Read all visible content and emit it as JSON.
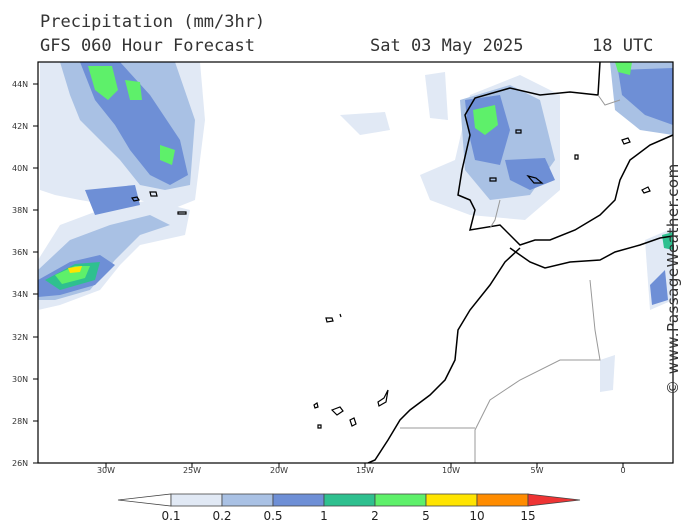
{
  "title": "Precipitation (mm/3hr)",
  "model_line": "GFS 060 Hour Forecast",
  "date": "Sat 03 May 2025",
  "time": "18 UTC",
  "credit": "© www.PassageWeather.com",
  "lat_labels": [
    "44N",
    "42N",
    "40N",
    "38N",
    "36N",
    "34N",
    "32N",
    "30N",
    "28N",
    "26N"
  ],
  "lon_labels": [
    "30W",
    "25W",
    "20W",
    "15W",
    "10W",
    "5W",
    "0"
  ],
  "legend": {
    "thresholds": [
      "0.1",
      "0.2",
      "0.5",
      "1",
      "2",
      "5",
      "10",
      "15"
    ],
    "colors": [
      "#ffffff",
      "#e1e9f5",
      "#a9c1e4",
      "#6e8fd6",
      "#2fc08f",
      "#5ef06a",
      "#ffe400",
      "#ff8c00",
      "#ee3434"
    ]
  }
}
